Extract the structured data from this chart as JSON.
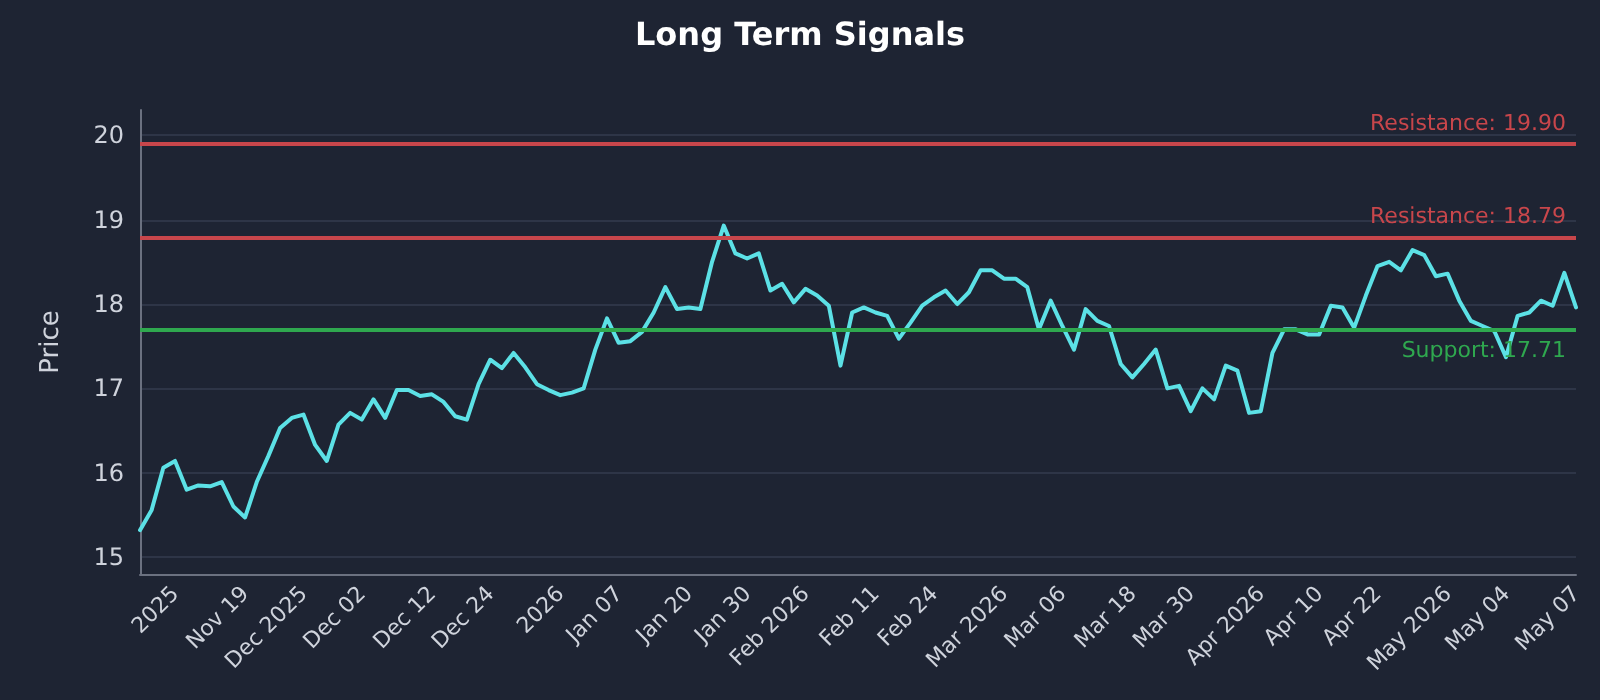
{
  "chart_data": {
    "type": "line",
    "title": "Long Term Signals",
    "ylabel": "Price",
    "categories": [
      null,
      null,
      null,
      "2025",
      null,
      null,
      null,
      null,
      null,
      "Nov 19",
      null,
      null,
      null,
      null,
      "Dec 2025",
      null,
      null,
      null,
      null,
      "Dec 02",
      null,
      null,
      null,
      null,
      null,
      "Dec 12",
      null,
      null,
      null,
      null,
      "Dec 24",
      null,
      null,
      null,
      null,
      null,
      "2026",
      null,
      null,
      null,
      null,
      "Jan 07",
      null,
      null,
      null,
      null,
      null,
      "Jan 20",
      null,
      null,
      null,
      null,
      "Jan 30",
      null,
      null,
      null,
      null,
      "Feb 2026",
      null,
      null,
      null,
      null,
      null,
      "Feb 11",
      null,
      null,
      null,
      null,
      "Feb 24",
      null,
      null,
      null,
      null,
      null,
      "Mar 2026",
      null,
      null,
      null,
      null,
      "Mar 06",
      null,
      null,
      null,
      null,
      null,
      "Mar 18",
      null,
      null,
      null,
      null,
      "Mar 30",
      null,
      null,
      null,
      null,
      null,
      "Apr 2026",
      null,
      null,
      null,
      null,
      "Apr 10",
      null,
      null,
      null,
      null,
      "Apr 22",
      null,
      null,
      null,
      null,
      null,
      "May 2026",
      null,
      null,
      null,
      null,
      "May 04",
      null,
      null,
      null,
      null,
      null,
      "May 07"
    ],
    "series": [
      {
        "color": "#5ce1e6",
        "values": [
          15.32,
          15.56,
          16.06,
          16.14,
          15.8,
          15.85,
          15.84,
          15.89,
          15.6,
          15.47,
          15.89,
          16.2,
          16.53,
          16.65,
          16.69,
          16.33,
          16.14,
          16.57,
          16.71,
          16.63,
          16.87,
          16.65,
          16.98,
          16.98,
          16.91,
          16.93,
          16.84,
          16.67,
          16.63,
          17.05,
          17.34,
          17.24,
          17.42,
          17.25,
          17.05,
          16.98,
          16.92,
          16.95,
          17.0,
          17.46,
          17.83,
          17.54,
          17.56,
          17.67,
          17.9,
          18.2,
          17.94,
          17.96,
          17.94,
          18.5,
          18.93,
          18.6,
          18.54,
          18.6,
          18.16,
          18.24,
          18.02,
          18.18,
          18.1,
          17.98,
          17.27,
          17.9,
          17.96,
          17.9,
          17.86,
          17.59,
          17.78,
          17.98,
          18.08,
          18.16,
          18.0,
          18.14,
          18.4,
          18.4,
          18.3,
          18.3,
          18.2,
          17.7,
          18.04,
          17.74,
          17.46,
          17.94,
          17.8,
          17.74,
          17.29,
          17.13,
          17.29,
          17.46,
          17.0,
          17.03,
          16.73,
          17.0,
          16.87,
          17.27,
          17.21,
          16.71,
          16.73,
          17.42,
          17.7,
          17.7,
          17.64,
          17.64,
          17.98,
          17.96,
          17.72,
          18.1,
          18.45,
          18.5,
          18.4,
          18.64,
          18.58,
          18.33,
          18.36,
          18.04,
          17.8,
          17.74,
          17.68,
          17.37,
          17.86,
          17.9,
          18.04,
          17.98,
          18.37,
          17.96
        ]
      }
    ],
    "ylim": [
      14.8,
      20.3
    ],
    "yticks": [
      15,
      16,
      17,
      18,
      19,
      20
    ],
    "grid": "y",
    "marker": "none",
    "line_style": "solid",
    "ref_lines": [
      {
        "axis": "y",
        "value": 19.9,
        "label": "Resistance: 19.90",
        "color": "#c8464b"
      },
      {
        "axis": "y",
        "value": 18.79,
        "label": "Resistance: 18.79",
        "color": "#c8464b"
      },
      {
        "axis": "y",
        "value": 17.71,
        "label": "Support: 17.71",
        "color": "#2fa84f"
      }
    ]
  }
}
